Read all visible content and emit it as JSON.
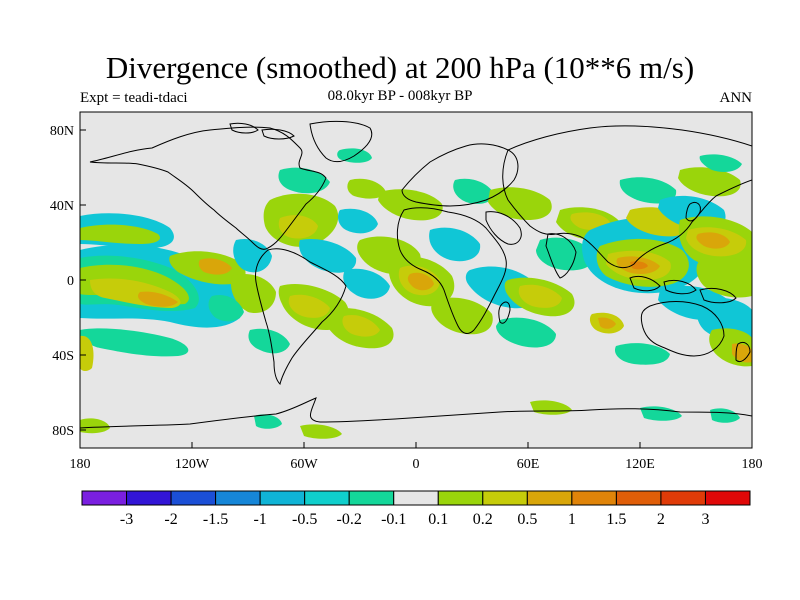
{
  "header": {
    "title": "Divergence (smoothed) at 200 hPa (10**6 m/s)",
    "expt": "Expt = teadi-tdaci",
    "period": "08.0kyr BP - 008kyr BP",
    "season": "ANN"
  },
  "axes": {
    "lat_ticks": [
      {
        "label": "80N",
        "lat": 80
      },
      {
        "label": "40N",
        "lat": 40
      },
      {
        "label": "0",
        "lat": 0
      },
      {
        "label": "40S",
        "lat": -40
      },
      {
        "label": "80S",
        "lat": -80
      }
    ],
    "lon_ticks": [
      {
        "label": "180",
        "lon": -180
      },
      {
        "label": "120W",
        "lon": -120
      },
      {
        "label": "60W",
        "lon": -60
      },
      {
        "label": "0",
        "lon": 0
      },
      {
        "label": "60E",
        "lon": 60
      },
      {
        "label": "120E",
        "lon": 120
      },
      {
        "label": "180",
        "lon": 180
      }
    ]
  },
  "colorbar": {
    "colors": [
      "#7a1fe0",
      "#3215d6",
      "#1b4fd6",
      "#1686d8",
      "#10b4d6",
      "#10cfcc",
      "#14d79a",
      "#e6e6e6",
      "#9ad50b",
      "#c6cc0a",
      "#d9a60a",
      "#e08409",
      "#e05e08",
      "#e03b08",
      "#e00808"
    ],
    "labels": [
      "-3",
      "-2",
      "-1.5",
      "-1",
      "-0.5",
      "-0.2",
      "-0.1",
      "0.1",
      "0.2",
      "0.5",
      "1",
      "1.5",
      "2",
      "3"
    ]
  },
  "map_colors": {
    "background": "#e6e6e6",
    "cyan": "#10c6d6",
    "teal": "#14d79a",
    "lime": "#9ad50b",
    "olive": "#c6cc0a",
    "orange": "#d9a60a",
    "dark_orange": "#e08409"
  }
}
